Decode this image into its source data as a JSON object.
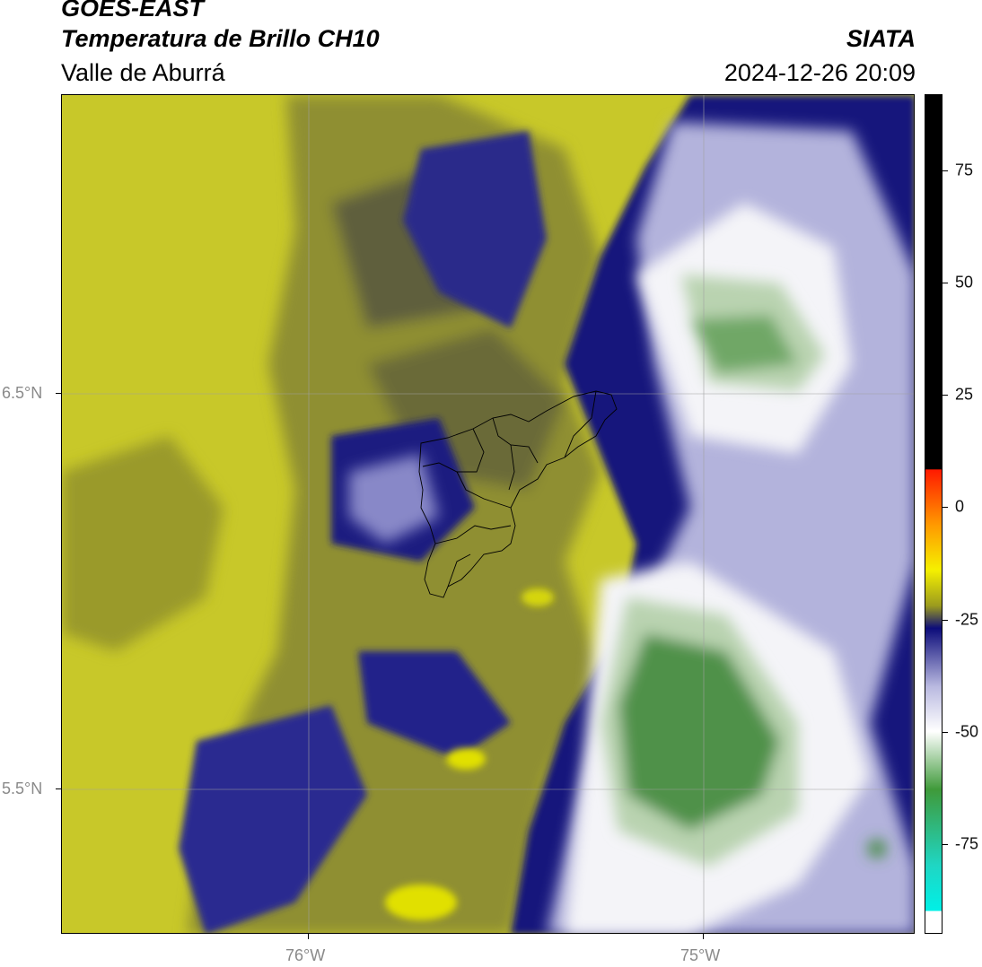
{
  "header": {
    "satellite": "GOES-EAST",
    "product": "Temperatura de Brillo CH10",
    "region": "Valle de Aburrá",
    "agency": "SIATA",
    "datetime": "2024-12-26 20:09"
  },
  "axes": {
    "lat_labels": [
      "6.5°N",
      "5.5°N"
    ],
    "lon_labels": [
      "76°W",
      "75°W"
    ]
  },
  "colorbar": {
    "ticks": [
      "75",
      "50",
      "25",
      "0",
      "-25",
      "-50",
      "-75"
    ],
    "tick_values": [
      75,
      50,
      25,
      0,
      -25,
      -50,
      -75
    ],
    "range": [
      -95,
      92
    ],
    "colors": {
      "hot": "#000000",
      "red": "#ff1a00",
      "orange": "#ff9a00",
      "yellow": "#f5f000",
      "olive": "#9b9b1e",
      "navy": "#0c0c7a",
      "lavender": "#b9b9e0",
      "white": "#ffffff",
      "green": "#3f9a3a",
      "teal": "#1fd6c4",
      "cyan": "#00f0e6"
    }
  },
  "map_colors": {
    "bg_yellow": "#c8c829",
    "olive": "#8f8f30",
    "dark_olive": "#5f5f3c",
    "navy": "#12127c",
    "blue": "#3a3aa0",
    "lavender": "#b3b3dc",
    "white": "#f4f4f8",
    "light_green": "#b9d3b0",
    "green": "#4f9148",
    "bright_yellow": "#e1e000"
  }
}
